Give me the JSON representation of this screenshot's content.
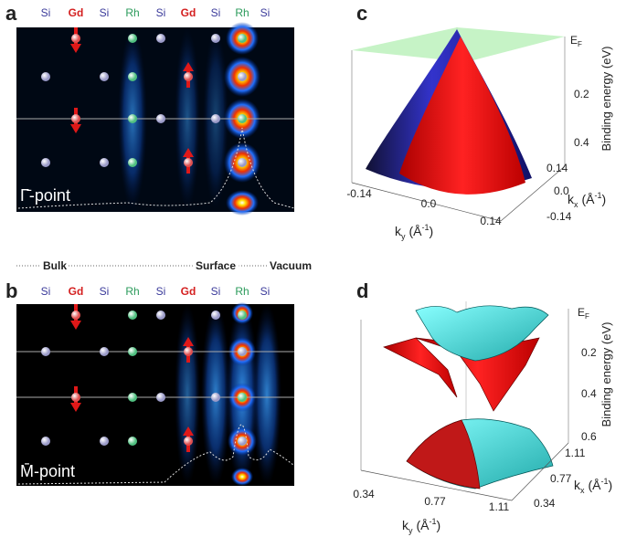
{
  "panels": {
    "a": {
      "letter": "a",
      "atoms": [
        "Si",
        "Gd",
        "Si",
        "Rh",
        "Si",
        "Gd",
        "Si",
        "Rh",
        "Si"
      ],
      "point_label": "Γ̄-point"
    },
    "b": {
      "letter": "b",
      "atoms": [
        "Si",
        "Gd",
        "Si",
        "Rh",
        "Si",
        "Gd",
        "Si",
        "Rh",
        "Si"
      ],
      "point_label": "M̄-point"
    },
    "c": {
      "letter": "c",
      "ef": {
        "main": "E",
        "sub": "F"
      },
      "energy_ticks": [
        "0.2",
        "0.4"
      ],
      "energy_label": "Binding energy (eV)",
      "ky_ticks": [
        "-0.14",
        "0.0",
        "0.14"
      ],
      "kx_ticks": [
        "0.14",
        "0.0",
        "-0.14"
      ],
      "ky_label": {
        "main": "k",
        "sub": "y",
        "unit": "(Å",
        "sup": "-1",
        "close": ")"
      },
      "kx_label": {
        "main": "k",
        "sub": "x",
        "unit": "(Å",
        "sup": "-1",
        "close": ")"
      }
    },
    "d": {
      "letter": "d",
      "ef": {
        "main": "E",
        "sub": "F"
      },
      "energy_ticks": [
        "0.2",
        "0.4",
        "0.6"
      ],
      "energy_label": "Binding energy (eV)",
      "ky_ticks": [
        "0.34",
        "0.77",
        "1.11"
      ],
      "kx_ticks": [
        "1.11",
        "0.77",
        "0.34"
      ],
      "ky_label": {
        "main": "k",
        "sub": "y",
        "unit": "(Å",
        "sup": "-1",
        "close": ")"
      },
      "kx_label": {
        "main": "k",
        "sub": "x",
        "unit": "(Å",
        "sup": "-1",
        "close": ")"
      }
    }
  },
  "regions": [
    "Bulk",
    "Surface",
    "Vacuum"
  ]
}
